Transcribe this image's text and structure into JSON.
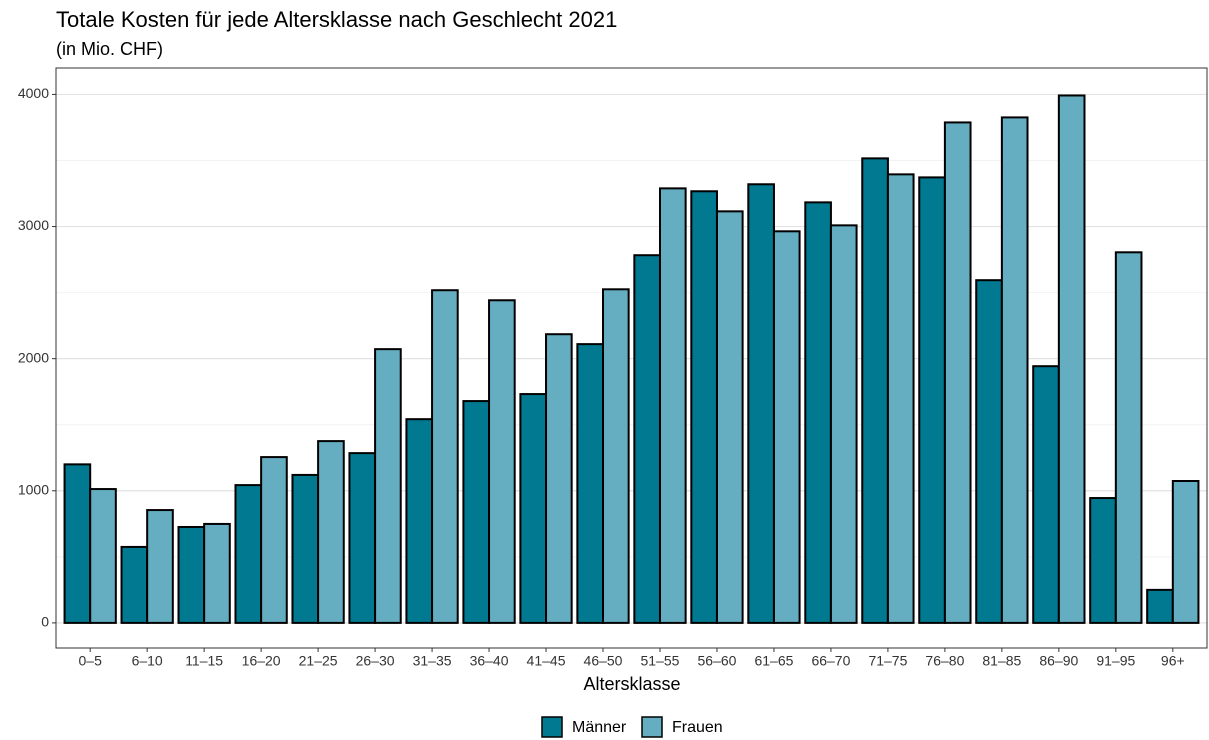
{
  "chart_data": {
    "type": "bar",
    "title": "Totale Kosten für jede Altersklasse nach Geschlecht 2021",
    "subtitle": "(in Mio. CHF)",
    "x_label": "Altersklasse",
    "categories": [
      "0–5",
      "6–10",
      "11–15",
      "16–20",
      "21–25",
      "26–30",
      "31–35",
      "36–40",
      "41–45",
      "46–50",
      "51–55",
      "56–60",
      "61–65",
      "66–70",
      "71–75",
      "76–80",
      "81–85",
      "86–90",
      "91–95",
      "96+"
    ],
    "series": [
      {
        "name": "Männer",
        "color": "#007991",
        "values": [
          1200,
          575,
          726,
          1043,
          1120,
          1285,
          1542,
          1679,
          1732,
          2110,
          2783,
          3267,
          3320,
          3183,
          3516,
          3372,
          2594,
          1943,
          945,
          250
        ]
      },
      {
        "name": "Frauen",
        "color": "#65aec2",
        "values": [
          1013,
          854,
          749,
          1255,
          1376,
          2072,
          2518,
          2442,
          2185,
          2525,
          3289,
          3115,
          2964,
          3009,
          3395,
          3788,
          3826,
          3992,
          2805,
          1074
        ]
      }
    ],
    "ylim": [
      -190,
      4200
    ],
    "yticks": [
      0,
      1000,
      2000,
      3000,
      4000
    ],
    "yminor": [
      500,
      1500,
      2500,
      3500
    ],
    "grid": true,
    "legend": "bottom"
  }
}
